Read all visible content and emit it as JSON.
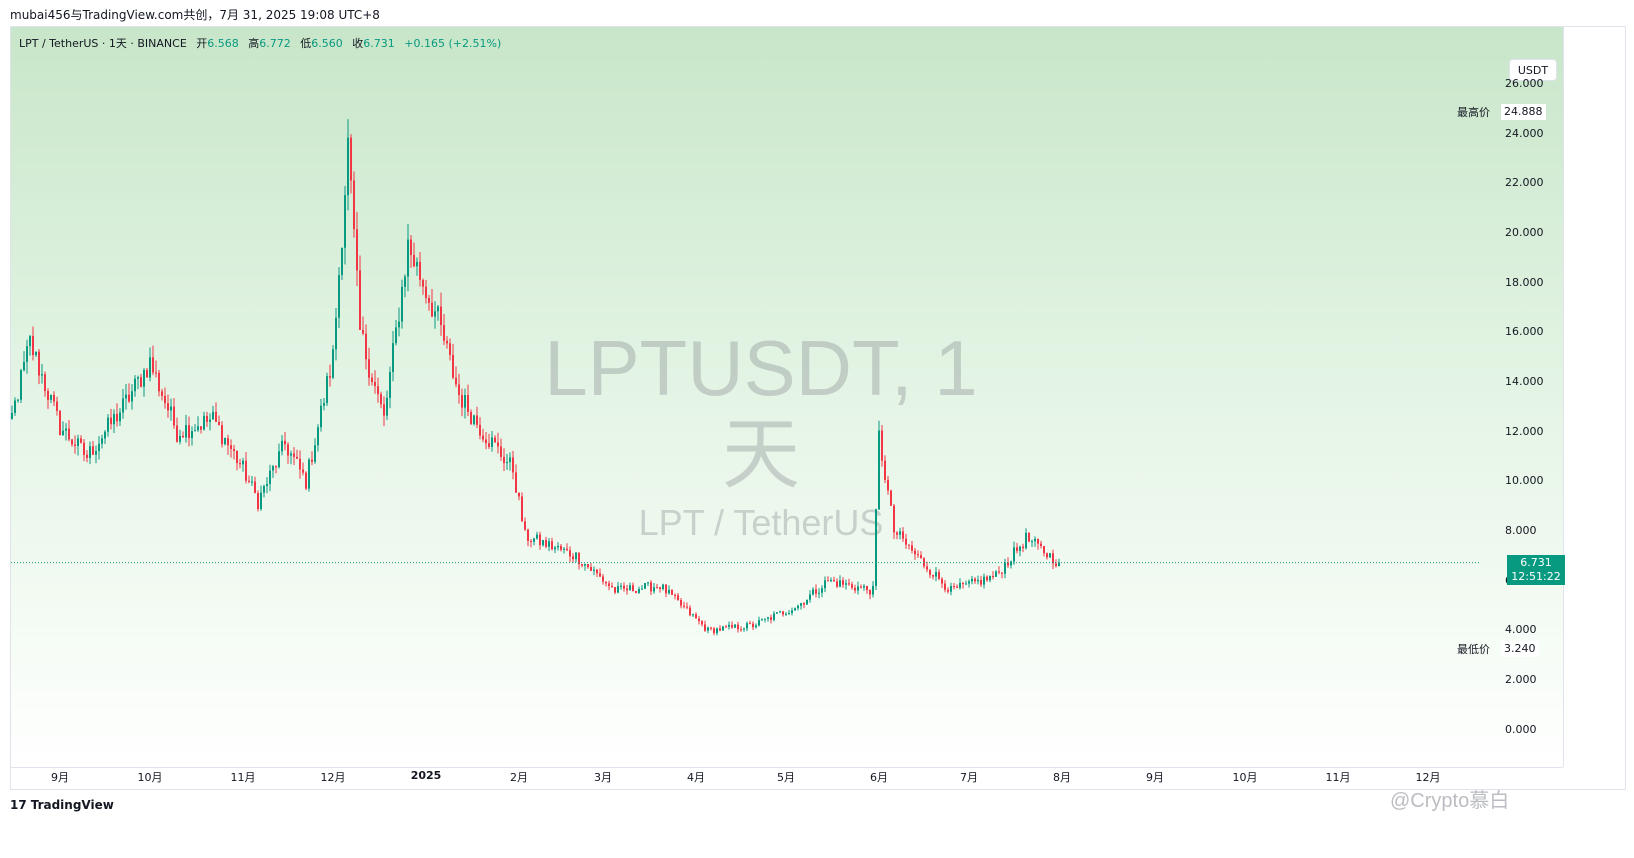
{
  "header": {
    "attribution": "mubai456与TradingView.com共创，7月 31, 2025 19:08 UTC+8"
  },
  "ohlc_bar": {
    "symbol": "LPT / TetherUS · 1天 · BINANCE",
    "open_label": "开",
    "open": "6.568",
    "high_label": "高",
    "high": "6.772",
    "low_label": "低",
    "low": "6.560",
    "close_label": "收",
    "close": "6.731",
    "change": "+0.165 (+2.51%)"
  },
  "watermark": {
    "title": "LPTUSDT, 1天",
    "subtitle": "LPT / TetherUS"
  },
  "currency_button": "USDT",
  "highest": {
    "label": "最高价",
    "value": "24.888"
  },
  "lowest": {
    "label": "最低价",
    "value": "3.240"
  },
  "last_price": {
    "value": "6.731",
    "countdown": "12:51:22"
  },
  "footer": {
    "brand": "TradingView",
    "corner_watermark": "@Crypto慕白"
  },
  "colors": {
    "up": "#089981",
    "down": "#f23645",
    "background_top": "#c8e6c9",
    "background_bottom": "#ffffff"
  },
  "chart_data": {
    "type": "candlestick",
    "title": "LPTUSDT, 1天",
    "ylim": [
      -1.5,
      28.3
    ],
    "yticks": [
      "26.000",
      "24.000",
      "22.000",
      "20.000",
      "18.000",
      "16.000",
      "14.000",
      "12.000",
      "10.000",
      "8.000",
      "6.000",
      "4.000",
      "2.000",
      "0.000"
    ],
    "xticks": [
      "9月",
      "10月",
      "11月",
      "12月",
      "2025",
      "2月",
      "3月",
      "4月",
      "5月",
      "6月",
      "7月",
      "8月",
      "9月",
      "10月",
      "11月",
      "12月"
    ],
    "bold_xtick": "2025",
    "highest_price": 24.888,
    "lowest_price": 3.24,
    "last_close": 6.731,
    "approx_daily_closes": [
      {
        "x": "2024-08-12",
        "y": 10.6
      },
      {
        "x": "2024-08-22",
        "y": 15.6
      },
      {
        "x": "2024-09-01",
        "y": 12.2
      },
      {
        "x": "2024-09-10",
        "y": 11.0
      },
      {
        "x": "2024-09-22",
        "y": 13.0
      },
      {
        "x": "2024-10-01",
        "y": 14.8
      },
      {
        "x": "2024-10-10",
        "y": 12.0
      },
      {
        "x": "2024-10-22",
        "y": 12.5
      },
      {
        "x": "2024-11-01",
        "y": 10.5
      },
      {
        "x": "2024-11-06",
        "y": 9.2
      },
      {
        "x": "2024-11-15",
        "y": 11.5
      },
      {
        "x": "2024-11-22",
        "y": 10.0
      },
      {
        "x": "2024-12-01",
        "y": 15.0
      },
      {
        "x": "2024-12-06",
        "y": 23.5
      },
      {
        "x": "2024-12-10",
        "y": 16.0
      },
      {
        "x": "2024-12-18",
        "y": 12.5
      },
      {
        "x": "2024-12-26",
        "y": 19.5
      },
      {
        "x": "2025-01-05",
        "y": 16.5
      },
      {
        "x": "2025-01-12",
        "y": 13.5
      },
      {
        "x": "2025-01-20",
        "y": 12.0
      },
      {
        "x": "2025-01-30",
        "y": 10.5
      },
      {
        "x": "2025-02-03",
        "y": 7.8
      },
      {
        "x": "2025-02-20",
        "y": 7.0
      },
      {
        "x": "2025-03-05",
        "y": 5.6
      },
      {
        "x": "2025-03-20",
        "y": 5.8
      },
      {
        "x": "2025-04-05",
        "y": 4.0
      },
      {
        "x": "2025-04-20",
        "y": 4.2
      },
      {
        "x": "2025-05-05",
        "y": 5.0
      },
      {
        "x": "2025-05-15",
        "y": 6.0
      },
      {
        "x": "2025-05-30",
        "y": 5.6
      },
      {
        "x": "2025-06-01",
        "y": 11.8
      },
      {
        "x": "2025-06-06",
        "y": 8.0
      },
      {
        "x": "2025-06-15",
        "y": 6.8
      },
      {
        "x": "2025-06-25",
        "y": 5.6
      },
      {
        "x": "2025-07-10",
        "y": 6.2
      },
      {
        "x": "2025-07-20",
        "y": 7.7
      },
      {
        "x": "2025-07-31",
        "y": 6.731
      }
    ]
  }
}
